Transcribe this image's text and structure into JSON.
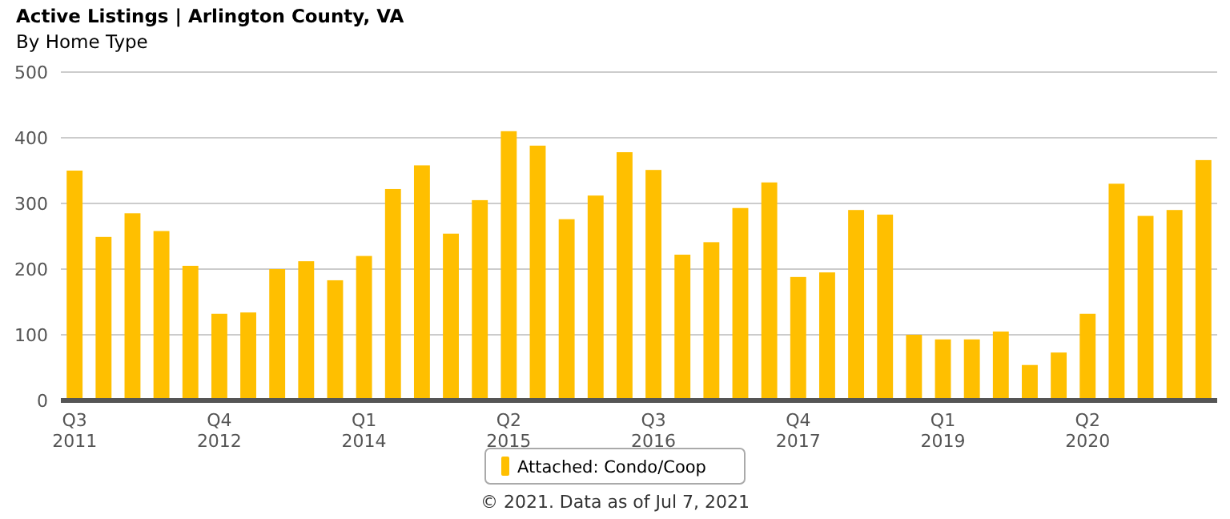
{
  "chart_data": {
    "type": "bar",
    "title": "Active Listings | Arlington County, VA",
    "subtitle": "By Home Type",
    "categories": [
      "Q3 2011",
      null,
      null,
      null,
      null,
      "Q4 2012",
      null,
      null,
      null,
      null,
      "Q1 2014",
      null,
      null,
      null,
      null,
      "Q2 2015",
      null,
      null,
      null,
      null,
      "Q3 2016",
      null,
      null,
      null,
      null,
      "Q4 2017",
      null,
      null,
      null,
      null,
      "Q1 2019",
      null,
      null,
      null,
      null,
      "Q2 2020",
      null,
      null,
      null,
      null
    ],
    "series": [
      {
        "name": "Attached: Condo/Coop",
        "color": "#ffbf00",
        "values": [
          350,
          249,
          285,
          258,
          205,
          132,
          134,
          200,
          212,
          183,
          220,
          322,
          358,
          254,
          305,
          410,
          388,
          276,
          312,
          378,
          351,
          222,
          241,
          293,
          332,
          188,
          195,
          290,
          283,
          100,
          93,
          93,
          105,
          54,
          73,
          132,
          330,
          281,
          290,
          366
        ]
      }
    ],
    "ylim": [
      0,
      500
    ],
    "yticks": [
      0,
      100,
      200,
      300,
      400,
      500
    ],
    "grid": "y",
    "legend": "bottom",
    "annotations": [
      "© 2021. Data as of Jul 7, 2021"
    ]
  }
}
